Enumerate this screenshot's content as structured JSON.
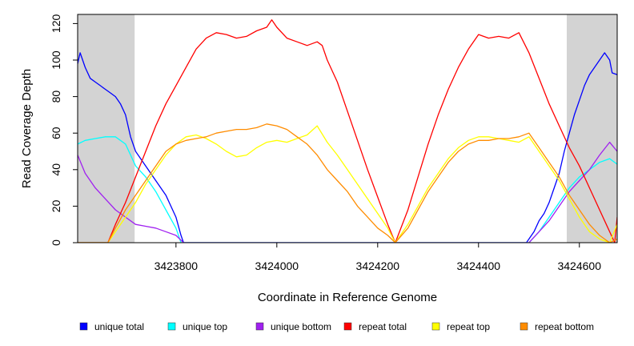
{
  "chart_data": {
    "type": "line",
    "title": "",
    "xlabel": "Coordinate in Reference Genome",
    "ylabel": "Read Coverage Depth",
    "xlim": [
      3423605,
      3424675
    ],
    "ylim": [
      0,
      125
    ],
    "x_ticks": [
      3423800,
      3424000,
      3424200,
      3424400,
      3424600
    ],
    "x_tick_labels": [
      "3423800",
      "3424000",
      "3424200",
      "3424400",
      "3424600"
    ],
    "y_ticks": [
      0,
      20,
      40,
      60,
      80,
      100,
      120
    ],
    "y_tick_labels": [
      "0",
      "20",
      "40",
      "60",
      "80",
      "100",
      "120"
    ],
    "grid": false,
    "legend_position": "bottom",
    "shaded_regions": [
      {
        "x": [
          3423605,
          3423718
        ],
        "color": "#d3d3d3"
      },
      {
        "x": [
          3424575,
          3424675
        ],
        "color": "#d3d3d3"
      }
    ],
    "series": [
      {
        "name": "unique total",
        "color": "#0000ff",
        "x": [
          3423605,
          3423610,
          3423620,
          3423630,
          3423640,
          3423650,
          3423660,
          3423670,
          3423680,
          3423690,
          3423700,
          3423710,
          3423720,
          3423730,
          3423740,
          3423750,
          3423760,
          3423770,
          3423780,
          3423790,
          3423800,
          3423810,
          3423815,
          3424495,
          3424500,
          3424510,
          3424520,
          3424530,
          3424540,
          3424550,
          3424560,
          3424570,
          3424580,
          3424590,
          3424600,
          3424610,
          3424620,
          3424630,
          3424640,
          3424650,
          3424660,
          3424665,
          3424675
        ],
        "y": [
          98,
          104,
          96,
          90,
          88,
          86,
          84,
          82,
          80,
          76,
          70,
          58,
          50,
          46,
          42,
          38,
          34,
          30,
          26,
          20,
          14,
          4,
          0,
          0,
          2,
          6,
          12,
          16,
          22,
          30,
          38,
          50,
          60,
          70,
          78,
          86,
          92,
          96,
          100,
          104,
          100,
          93,
          92
        ]
      },
      {
        "name": "unique top",
        "color": "#00ffff",
        "x": [
          3423605,
          3423620,
          3423640,
          3423660,
          3423680,
          3423700,
          3423720,
          3423740,
          3423760,
          3423780,
          3423800,
          3423810,
          3424500,
          3424520,
          3424540,
          3424560,
          3424580,
          3424600,
          3424620,
          3424640,
          3424660,
          3424675
        ],
        "y": [
          54,
          56,
          57,
          58,
          58,
          54,
          42,
          36,
          28,
          18,
          8,
          0,
          0,
          6,
          14,
          22,
          30,
          36,
          40,
          44,
          46,
          43
        ]
      },
      {
        "name": "unique bottom",
        "color": "#a020f0",
        "x": [
          3423605,
          3423620,
          3423640,
          3423660,
          3423680,
          3423700,
          3423720,
          3423740,
          3423760,
          3423780,
          3423800,
          3423815,
          3424500,
          3424520,
          3424540,
          3424560,
          3424580,
          3424600,
          3424620,
          3424640,
          3424660,
          3424675
        ],
        "y": [
          48,
          38,
          30,
          24,
          18,
          14,
          10,
          9,
          8,
          6,
          4,
          0,
          0,
          6,
          12,
          20,
          28,
          34,
          40,
          48,
          55,
          50
        ]
      },
      {
        "name": "repeat total",
        "color": "#ff0000",
        "x": [
          3423605,
          3423665,
          3423680,
          3423700,
          3423720,
          3423740,
          3423760,
          3423780,
          3423800,
          3423820,
          3423840,
          3423860,
          3423880,
          3423900,
          3423920,
          3423940,
          3423960,
          3423980,
          3423990,
          3424000,
          3424020,
          3424040,
          3424060,
          3424080,
          3424090,
          3424100,
          3424120,
          3424140,
          3424160,
          3424180,
          3424200,
          3424220,
          3424235,
          3424260,
          3424280,
          3424300,
          3424320,
          3424340,
          3424360,
          3424380,
          3424400,
          3424420,
          3424440,
          3424460,
          3424480,
          3424500,
          3424520,
          3424540,
          3424560,
          3424580,
          3424600,
          3424620,
          3424640,
          3424660,
          3424670,
          3424675
        ],
        "y": [
          0,
          0,
          10,
          22,
          36,
          50,
          64,
          76,
          86,
          96,
          106,
          112,
          115,
          114,
          112,
          113,
          116,
          118,
          122,
          118,
          112,
          110,
          108,
          110,
          108,
          100,
          88,
          72,
          56,
          40,
          25,
          10,
          0,
          18,
          36,
          54,
          70,
          84,
          96,
          106,
          114,
          112,
          113,
          112,
          115,
          104,
          90,
          76,
          64,
          52,
          42,
          30,
          18,
          6,
          0,
          14
        ]
      },
      {
        "name": "repeat top",
        "color": "#ffff00",
        "x": [
          3423605,
          3423665,
          3423680,
          3423700,
          3423720,
          3423740,
          3423760,
          3423780,
          3423800,
          3423820,
          3423840,
          3423860,
          3423880,
          3423900,
          3423920,
          3423940,
          3423960,
          3423980,
          3424000,
          3424020,
          3424040,
          3424060,
          3424080,
          3424100,
          3424120,
          3424140,
          3424160,
          3424180,
          3424200,
          3424220,
          3424235,
          3424260,
          3424280,
          3424300,
          3424320,
          3424340,
          3424360,
          3424380,
          3424400,
          3424420,
          3424440,
          3424460,
          3424480,
          3424500,
          3424520,
          3424540,
          3424560,
          3424580,
          3424600,
          3424620,
          3424640,
          3424660,
          3424675
        ],
        "y": [
          0,
          0,
          6,
          14,
          22,
          32,
          40,
          48,
          54,
          58,
          59,
          57,
          54,
          50,
          47,
          48,
          52,
          55,
          56,
          55,
          57,
          59,
          64,
          55,
          48,
          40,
          32,
          24,
          16,
          8,
          0,
          10,
          20,
          30,
          38,
          46,
          52,
          56,
          58,
          58,
          57,
          56,
          55,
          58,
          50,
          42,
          34,
          24,
          14,
          6,
          2,
          0,
          10
        ]
      },
      {
        "name": "repeat bottom",
        "color": "#ff8c00",
        "x": [
          3423605,
          3423665,
          3423680,
          3423700,
          3423720,
          3423740,
          3423760,
          3423780,
          3423800,
          3423820,
          3423840,
          3423860,
          3423880,
          3423900,
          3423920,
          3423940,
          3423960,
          3423980,
          3424000,
          3424020,
          3424040,
          3424060,
          3424080,
          3424100,
          3424120,
          3424140,
          3424160,
          3424180,
          3424200,
          3424220,
          3424235,
          3424260,
          3424280,
          3424300,
          3424320,
          3424340,
          3424360,
          3424380,
          3424400,
          3424420,
          3424440,
          3424460,
          3424480,
          3424500,
          3424520,
          3424540,
          3424560,
          3424580,
          3424600,
          3424620,
          3424640,
          3424660,
          3424675
        ],
        "y": [
          0,
          0,
          8,
          18,
          26,
          34,
          42,
          50,
          54,
          56,
          57,
          58,
          60,
          61,
          62,
          62,
          63,
          65,
          64,
          62,
          58,
          54,
          48,
          40,
          34,
          28,
          20,
          14,
          8,
          4,
          0,
          8,
          18,
          28,
          36,
          44,
          50,
          54,
          56,
          56,
          57,
          57,
          58,
          60,
          52,
          44,
          36,
          26,
          18,
          10,
          4,
          0,
          2
        ]
      }
    ]
  }
}
